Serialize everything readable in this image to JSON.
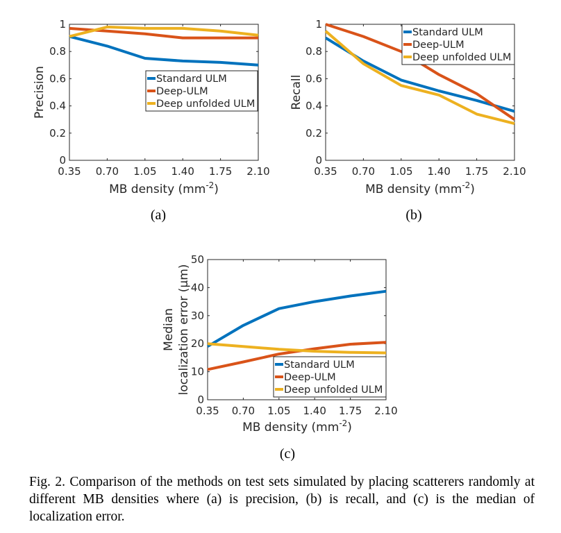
{
  "chart_data": [
    {
      "type": "line",
      "panel_label": "(a)",
      "ylabel": "Precision",
      "xlabel": "MB density (mm",
      "xlabel_exp": "-2",
      "xlabel_close": ")",
      "categories": [
        "0.35",
        "0.70",
        "1.05",
        "1.40",
        "1.75",
        "2.10"
      ],
      "x": [
        0.35,
        0.7,
        1.05,
        1.4,
        1.75,
        2.1
      ],
      "ylim": [
        0,
        1
      ],
      "yticks": [
        0,
        0.2,
        0.4,
        0.6,
        0.8,
        1
      ],
      "ytick_labels": [
        "0",
        "0.2",
        "0.4",
        "0.6",
        "0.8",
        "1"
      ],
      "legend_placement": "center-right",
      "series": [
        {
          "name": "Standard ULM",
          "color": "#0072BD",
          "values": [
            0.91,
            0.84,
            0.75,
            0.73,
            0.72,
            0.7
          ]
        },
        {
          "name": "Deep-ULM",
          "color": "#D95319",
          "values": [
            0.97,
            0.95,
            0.93,
            0.9,
            0.9,
            0.9
          ]
        },
        {
          "name": "Deep unfolded ULM",
          "color": "#EDB120",
          "values": [
            0.91,
            0.98,
            0.97,
            0.97,
            0.95,
            0.92
          ]
        }
      ]
    },
    {
      "type": "line",
      "panel_label": "(b)",
      "ylabel": "Recall",
      "xlabel": "MB density (mm",
      "xlabel_exp": "-2",
      "xlabel_close": ")",
      "categories": [
        "0.35",
        "0.70",
        "1.05",
        "1.40",
        "1.75",
        "2.10"
      ],
      "x": [
        0.35,
        0.7,
        1.05,
        1.4,
        1.75,
        2.1
      ],
      "ylim": [
        0,
        1
      ],
      "yticks": [
        0,
        0.2,
        0.4,
        0.6,
        0.8,
        1
      ],
      "ytick_labels": [
        "0",
        "0.2",
        "0.4",
        "0.6",
        "0.8",
        "1"
      ],
      "legend_placement": "top-right",
      "series": [
        {
          "name": "Standard ULM",
          "color": "#0072BD",
          "values": [
            0.9,
            0.73,
            0.59,
            0.51,
            0.44,
            0.36
          ]
        },
        {
          "name": "Deep-ULM",
          "color": "#D95319",
          "values": [
            1.0,
            0.91,
            0.8,
            0.63,
            0.49,
            0.3
          ]
        },
        {
          "name": "Deep unfolded ULM",
          "color": "#EDB120",
          "values": [
            0.95,
            0.71,
            0.55,
            0.48,
            0.34,
            0.27
          ]
        }
      ]
    },
    {
      "type": "line",
      "panel_label": "(c)",
      "ylabel": "Median",
      "ylabel2": "localization error (μm)",
      "xlabel": "MB density (mm",
      "xlabel_exp": "-2",
      "xlabel_close": ")",
      "categories": [
        "0.35",
        "0.70",
        "1.05",
        "1.40",
        "1.75",
        "2.10"
      ],
      "x": [
        0.35,
        0.7,
        1.05,
        1.4,
        1.75,
        2.1
      ],
      "ylim": [
        0,
        50
      ],
      "yticks": [
        0,
        10,
        20,
        30,
        40,
        50
      ],
      "ytick_labels": [
        "0",
        "10",
        "20",
        "30",
        "40",
        "50"
      ],
      "legend_placement": "bottom-right",
      "series": [
        {
          "name": "Standard ULM",
          "color": "#0072BD",
          "values": [
            19,
            26.5,
            32.5,
            35,
            37,
            38.7
          ]
        },
        {
          "name": "Deep-ULM",
          "color": "#D95319",
          "values": [
            10.8,
            13.5,
            16.3,
            18.2,
            19.8,
            20.5
          ]
        },
        {
          "name": "Deep unfolded ULM",
          "color": "#EDB120",
          "values": [
            20,
            19,
            18,
            17.3,
            16.9,
            16.7
          ]
        }
      ]
    }
  ],
  "caption": "Fig. 2.  Comparison of the methods on test sets simulated by placing scatterers randomly at different MB densities where (a) is precision, (b) is recall, and (c) is the median of localization error."
}
